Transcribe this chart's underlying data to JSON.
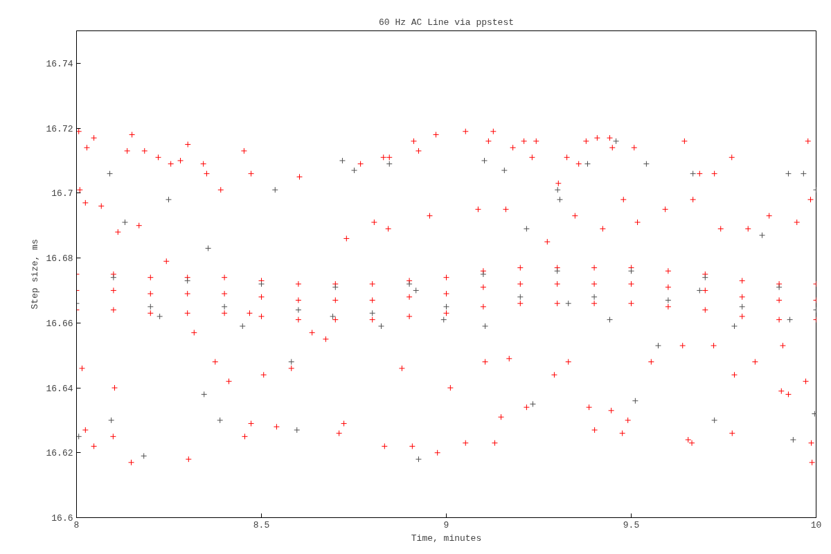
{
  "chart_data": {
    "type": "scatter",
    "title": "60 Hz AC Line via ppstest",
    "xlabel": "Time, minutes",
    "ylabel": "Step size, ms",
    "xlim": [
      8,
      10
    ],
    "xticks": [
      8,
      8.5,
      9,
      9.5,
      10
    ],
    "ylim": [
      16.6,
      16.75
    ],
    "yticks": [
      16.6,
      16.62,
      16.64,
      16.66,
      16.68,
      16.7,
      16.72,
      16.74
    ],
    "marker": "cross",
    "series": [
      {
        "color": "#ff0000",
        "x": [
          8.006,
          8.009,
          8.028,
          8.047,
          8.024,
          8.015,
          8.024,
          8.047,
          8.099,
          8.103,
          8.148,
          8.15,
          8.137,
          8.184,
          8.221,
          8.255,
          8.281,
          8.301,
          8.303,
          8.343,
          8.352,
          8.39,
          8.453,
          8.472,
          8.455,
          8.472,
          8.541,
          8.603,
          8.71,
          8.723,
          8.768,
          8.83,
          8.833,
          8.846,
          8.912,
          8.925,
          8.908,
          8.972,
          8.976,
          9.052,
          9.052,
          9.127,
          9.114,
          9.131,
          9.148,
          9.18,
          9.21,
          9.243,
          9.232,
          9.303,
          9.326,
          9.358,
          9.378,
          9.408,
          9.442,
          9.449,
          9.401,
          9.446,
          9.476,
          9.491,
          9.508,
          9.644,
          9.654,
          9.664,
          9.685,
          9.725,
          9.772,
          9.773,
          9.906,
          9.925,
          9.978,
          9.987,
          9.989,
          9.972,
          8.067,
          8.112,
          8.169,
          8.243,
          8.318,
          8.375,
          8.412,
          8.468,
          8.506,
          8.581,
          8.637,
          8.674,
          8.73,
          8.805,
          8.843,
          8.88,
          8.955,
          9.011,
          9.086,
          9.105,
          9.161,
          9.17,
          9.217,
          9.273,
          9.292,
          9.33,
          9.348,
          9.386,
          9.423,
          9.479,
          9.517,
          9.554,
          9.592,
          9.639,
          9.667,
          9.723,
          9.742,
          9.779,
          9.816,
          9.835,
          9.873,
          9.91,
          9.948,
          9.985,
          8.0,
          8.1,
          8.2,
          8.3,
          8.4,
          8.5,
          8.6,
          8.7,
          8.8,
          8.9,
          9.0,
          9.1,
          9.2,
          9.3,
          9.4,
          9.5,
          9.6,
          9.7,
          9.8,
          9.9,
          10.0,
          8.0,
          8.1,
          8.2,
          8.3,
          8.4,
          8.5,
          8.6,
          8.7,
          8.8,
          8.9,
          9.0,
          9.1,
          9.2,
          9.3,
          9.4,
          9.5,
          9.6,
          9.7,
          9.8,
          9.9,
          10.0,
          8.0,
          8.1,
          8.2,
          8.3,
          8.4,
          8.5,
          8.6,
          8.7,
          8.8,
          8.9,
          9.0,
          9.1,
          9.2,
          9.3,
          9.4,
          9.5,
          9.6,
          9.7,
          9.8,
          9.9,
          10.0
        ],
        "values": [
          16.719,
          16.701,
          16.714,
          16.717,
          16.697,
          16.646,
          16.627,
          16.622,
          16.625,
          16.64,
          16.617,
          16.718,
          16.713,
          16.713,
          16.711,
          16.709,
          16.71,
          16.715,
          16.618,
          16.709,
          16.706,
          16.701,
          16.713,
          16.706,
          16.625,
          16.629,
          16.628,
          16.705,
          16.626,
          16.629,
          16.709,
          16.711,
          16.622,
          16.711,
          16.716,
          16.713,
          16.622,
          16.718,
          16.62,
          16.719,
          16.623,
          16.719,
          16.716,
          16.623,
          16.631,
          16.714,
          16.716,
          16.716,
          16.711,
          16.703,
          16.711,
          16.709,
          16.716,
          16.717,
          16.717,
          16.714,
          16.627,
          16.633,
          16.626,
          16.63,
          16.714,
          16.716,
          16.624,
          16.623,
          16.706,
          16.706,
          16.711,
          16.626,
          16.639,
          16.638,
          16.716,
          16.623,
          16.617,
          16.642,
          16.696,
          16.688,
          16.69,
          16.679,
          16.657,
          16.648,
          16.642,
          16.663,
          16.644,
          16.646,
          16.657,
          16.655,
          16.686,
          16.691,
          16.689,
          16.646,
          16.693,
          16.64,
          16.695,
          16.648,
          16.695,
          16.649,
          16.634,
          16.685,
          16.644,
          16.648,
          16.693,
          16.634,
          16.689,
          16.698,
          16.691,
          16.648,
          16.695,
          16.653,
          16.698,
          16.653,
          16.689,
          16.644,
          16.689,
          16.648,
          16.693,
          16.653,
          16.691,
          16.698,
          16.67,
          16.67,
          16.669,
          16.669,
          16.669,
          16.668,
          16.667,
          16.667,
          16.667,
          16.668,
          16.669,
          16.671,
          16.672,
          16.672,
          16.672,
          16.672,
          16.671,
          16.67,
          16.668,
          16.667,
          16.667,
          16.675,
          16.675,
          16.674,
          16.674,
          16.674,
          16.673,
          16.672,
          16.672,
          16.672,
          16.673,
          16.674,
          16.676,
          16.677,
          16.677,
          16.677,
          16.677,
          16.676,
          16.675,
          16.673,
          16.672,
          16.672,
          16.664,
          16.664,
          16.663,
          16.663,
          16.663,
          16.662,
          16.661,
          16.661,
          16.661,
          16.662,
          16.663,
          16.665,
          16.666,
          16.666,
          16.666,
          16.666,
          16.665,
          16.664,
          16.662,
          16.661,
          16.661
        ]
      },
      {
        "color": "#505050",
        "x": [
          8.09,
          8.094,
          8.006,
          8.182,
          8.249,
          8.345,
          8.388,
          8.537,
          8.596,
          8.719,
          8.751,
          8.846,
          8.925,
          9.103,
          9.157,
          9.234,
          9.301,
          9.307,
          9.382,
          9.459,
          9.511,
          9.541,
          9.667,
          9.725,
          9.925,
          9.938,
          9.966,
          9.996,
          10.0,
          8.131,
          8.225,
          8.356,
          8.449,
          8.581,
          8.693,
          8.824,
          8.918,
          8.993,
          9.105,
          9.217,
          9.33,
          9.442,
          9.573,
          9.685,
          9.779,
          9.854,
          9.929,
          8.0,
          8.2,
          8.4,
          8.6,
          8.8,
          9.0,
          9.2,
          9.4,
          9.6,
          9.8,
          10.0,
          8.1,
          8.3,
          8.5,
          8.7,
          8.9,
          9.1,
          9.3,
          9.5,
          9.7,
          9.9
        ],
        "values": [
          16.706,
          16.63,
          16.625,
          16.619,
          16.698,
          16.638,
          16.63,
          16.701,
          16.627,
          16.71,
          16.707,
          16.709,
          16.618,
          16.71,
          16.707,
          16.635,
          16.701,
          16.698,
          16.709,
          16.716,
          16.636,
          16.709,
          16.706,
          16.63,
          16.706,
          16.624,
          16.706,
          16.632,
          16.701,
          16.691,
          16.662,
          16.683,
          16.659,
          16.648,
          16.662,
          16.659,
          16.67,
          16.661,
          16.659,
          16.689,
          16.666,
          16.661,
          16.653,
          16.67,
          16.659,
          16.687,
          16.661,
          16.666,
          16.665,
          16.665,
          16.664,
          16.663,
          16.665,
          16.668,
          16.668,
          16.667,
          16.665,
          16.664,
          16.674,
          16.673,
          16.672,
          16.671,
          16.672,
          16.675,
          16.676,
          16.676,
          16.674,
          16.671
        ]
      }
    ]
  }
}
